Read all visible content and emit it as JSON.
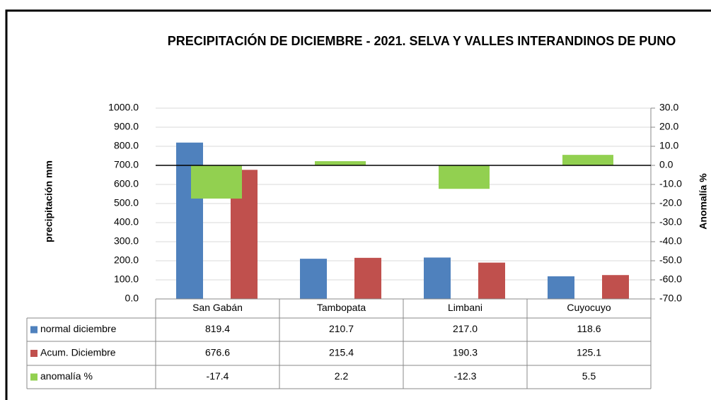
{
  "chart_data": {
    "type": "bar",
    "title": "PRECIPITACIÓN DE DICIEMBRE - 2021. SELVA Y VALLES INTERANDINOS DE PUNO",
    "ylabel": "precipitación mm",
    "y2label": "Anomalía %",
    "categories": [
      "San Gabán",
      "Tambopata",
      "Limbani",
      "Cuyocuyo"
    ],
    "series": [
      {
        "name": "normal diciembre",
        "color": "#4f81bd",
        "values": [
          819.4,
          210.7,
          217.0,
          118.6
        ],
        "value_labels": [
          "819.4",
          "210.7",
          "217.0",
          "118.6"
        ]
      },
      {
        "name": "Acum. Diciembre",
        "color": "#c0504d",
        "values": [
          676.6,
          215.4,
          190.3,
          125.1
        ]
      },
      {
        "name": "anomalía %",
        "color": "#92d050",
        "axis": "y2",
        "values": [
          -17.4,
          2.2,
          -12.3,
          5.5
        ]
      }
    ],
    "ylim": [
      0,
      1000
    ],
    "yticks": [
      {
        "value": 0,
        "label": "0.0"
      },
      {
        "value": 100,
        "label": "100.0"
      },
      {
        "value": 200,
        "label": "200.0"
      },
      {
        "value": 300,
        "label": "300.0"
      },
      {
        "value": 400,
        "label": "400.0"
      },
      {
        "value": 500,
        "label": "500.0"
      },
      {
        "value": 600,
        "label": "600.0"
      },
      {
        "value": 700,
        "label": "700.0"
      },
      {
        "value": 800,
        "label": "800.0"
      },
      {
        "value": 900,
        "label": "900.0"
      },
      {
        "value": 1000,
        "label": "1000.0"
      }
    ],
    "y2lim": [
      -70,
      30
    ],
    "y2ticks": [
      {
        "value": -70,
        "label": "-70.0"
      },
      {
        "value": -60,
        "label": "-60.0"
      },
      {
        "value": -50,
        "label": "-50.0"
      },
      {
        "value": -40,
        "label": "-40.0"
      },
      {
        "value": -30,
        "label": "-30.0"
      },
      {
        "value": -20,
        "label": "-20.0"
      },
      {
        "value": -10,
        "label": "-10.0"
      },
      {
        "value": 0,
        "label": "0.0"
      },
      {
        "value": 10,
        "label": "10.0"
      },
      {
        "value": 20,
        "label": "20.0"
      },
      {
        "value": 30,
        "label": "30.0"
      }
    ],
    "y2_negative_color": "#ff0000",
    "grid": true
  }
}
